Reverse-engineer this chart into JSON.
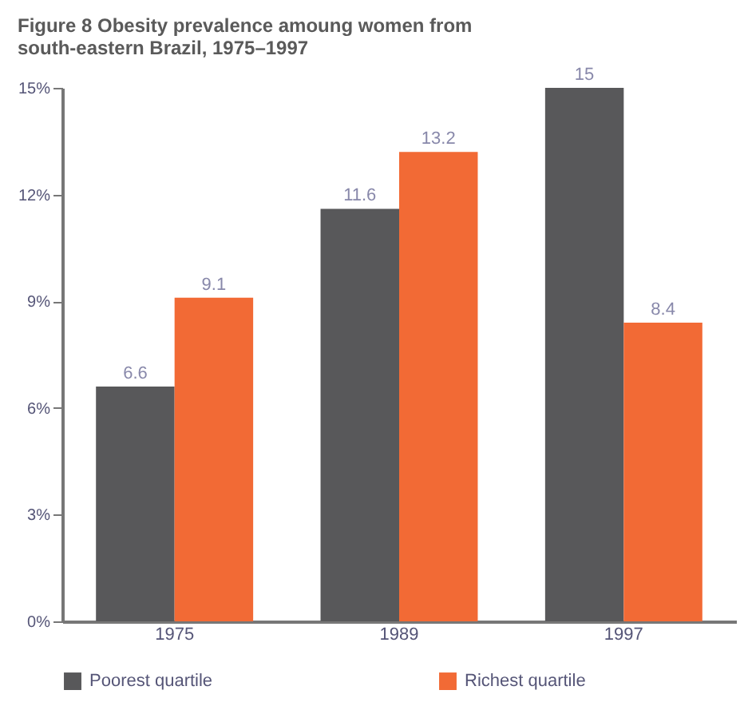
{
  "chart_data": {
    "type": "bar",
    "title": [
      "Figure 8 Obesity prevalence amoung women from",
      "south-eastern Brazil, 1975–1997"
    ],
    "categories": [
      "1975",
      "1989",
      "1997"
    ],
    "series": [
      {
        "name": "Poorest quartile",
        "color": "#58585a",
        "values": [
          6.6,
          11.6,
          15
        ]
      },
      {
        "name": "Richest quartile",
        "color": "#f26a35",
        "values": [
          9.1,
          13.2,
          8.4
        ]
      }
    ],
    "ylim": [
      0,
      15
    ],
    "yticks": [
      {
        "value": 0,
        "label": "0%"
      },
      {
        "value": 3,
        "label": "3%"
      },
      {
        "value": 6,
        "label": "6%"
      },
      {
        "value": 9,
        "label": "9%"
      },
      {
        "value": 12,
        "label": "12%"
      },
      {
        "value": 15,
        "label": "15%"
      }
    ],
    "data_labels": true,
    "grid": false,
    "legend": "bottom"
  }
}
